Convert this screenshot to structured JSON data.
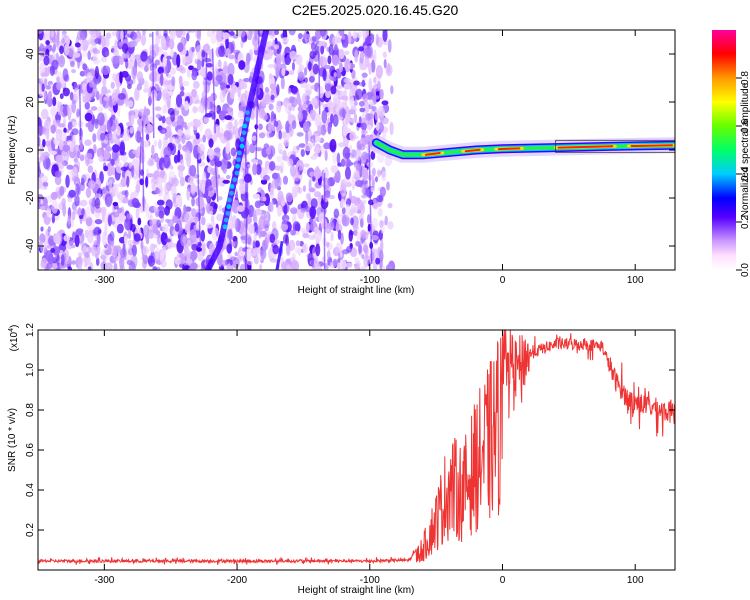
{
  "title": "C2E5.2025.020.16.45.G20",
  "chart_data": [
    {
      "type": "heatmap",
      "xlabel": "Height of straight line (km)",
      "ylabel": "Frequency (Hz)",
      "xlim": [
        -350,
        130
      ],
      "ylim": [
        -50,
        50
      ],
      "xticks": [
        -300,
        -200,
        -100,
        0,
        100
      ],
      "yticks": [
        -40,
        -20,
        0,
        20,
        40
      ],
      "colorbar": {
        "label": "Normalized spectral amplitude",
        "range": [
          0.0,
          1.0
        ],
        "ticks": [
          "0.0",
          "0.2",
          "0.4",
          "0.6",
          "0.8"
        ]
      },
      "noise_region_x": [
        -350,
        -90
      ],
      "features": [
        {
          "name": "diagonal trace",
          "points": [
            [
              -222,
              -50
            ],
            [
              -213,
              -40
            ],
            [
              -205,
              -20
            ],
            [
              -197,
              0
            ],
            [
              -190,
              20
            ],
            [
              -182,
              40
            ],
            [
              -178,
              50
            ]
          ]
        },
        {
          "name": "carrier line",
          "points": [
            [
              -95,
              3
            ],
            [
              -85,
              0
            ],
            [
              -75,
              -2
            ],
            [
              -60,
              -2
            ],
            [
              -40,
              -1
            ],
            [
              -20,
              0
            ],
            [
              0,
              0.5
            ],
            [
              40,
              1
            ],
            [
              80,
              1.5
            ],
            [
              130,
              2
            ]
          ]
        }
      ]
    },
    {
      "type": "line",
      "xlabel": "Height of straight line (km)",
      "ylabel": "SNR (10 * v/v)",
      "y_multiplier": "(x10",
      "y_multiplier_exp": "4",
      "y_multiplier_close": ")",
      "xlim": [
        -350,
        130
      ],
      "ylim": [
        0,
        12000
      ],
      "xticks": [
        -300,
        -200,
        -100,
        0,
        100
      ],
      "yticks": [
        0.2,
        0.4,
        0.6,
        0.8,
        1.0,
        1.2
      ],
      "color": "#ee3333",
      "series_envelope": [
        [
          -350,
          450
        ],
        [
          -100,
          450
        ],
        [
          -70,
          500
        ],
        [
          -60,
          1500
        ],
        [
          -50,
          3500
        ],
        [
          -40,
          6000
        ],
        [
          -30,
          5500
        ],
        [
          -20,
          7500
        ],
        [
          -10,
          9000
        ],
        [
          0,
          11000
        ],
        [
          10,
          10000
        ],
        [
          20,
          10800
        ],
        [
          40,
          11300
        ],
        [
          60,
          11300
        ],
        [
          75,
          11200
        ],
        [
          85,
          9500
        ],
        [
          95,
          8500
        ],
        [
          110,
          8200
        ],
        [
          130,
          7800
        ]
      ]
    }
  ]
}
